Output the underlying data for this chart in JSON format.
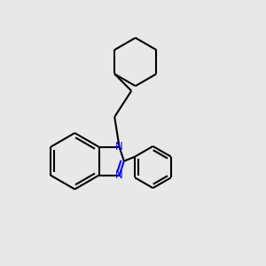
{
  "bg_color": "#e8e8e8",
  "line_color": "black",
  "n_color": "blue",
  "lw": 1.5
}
